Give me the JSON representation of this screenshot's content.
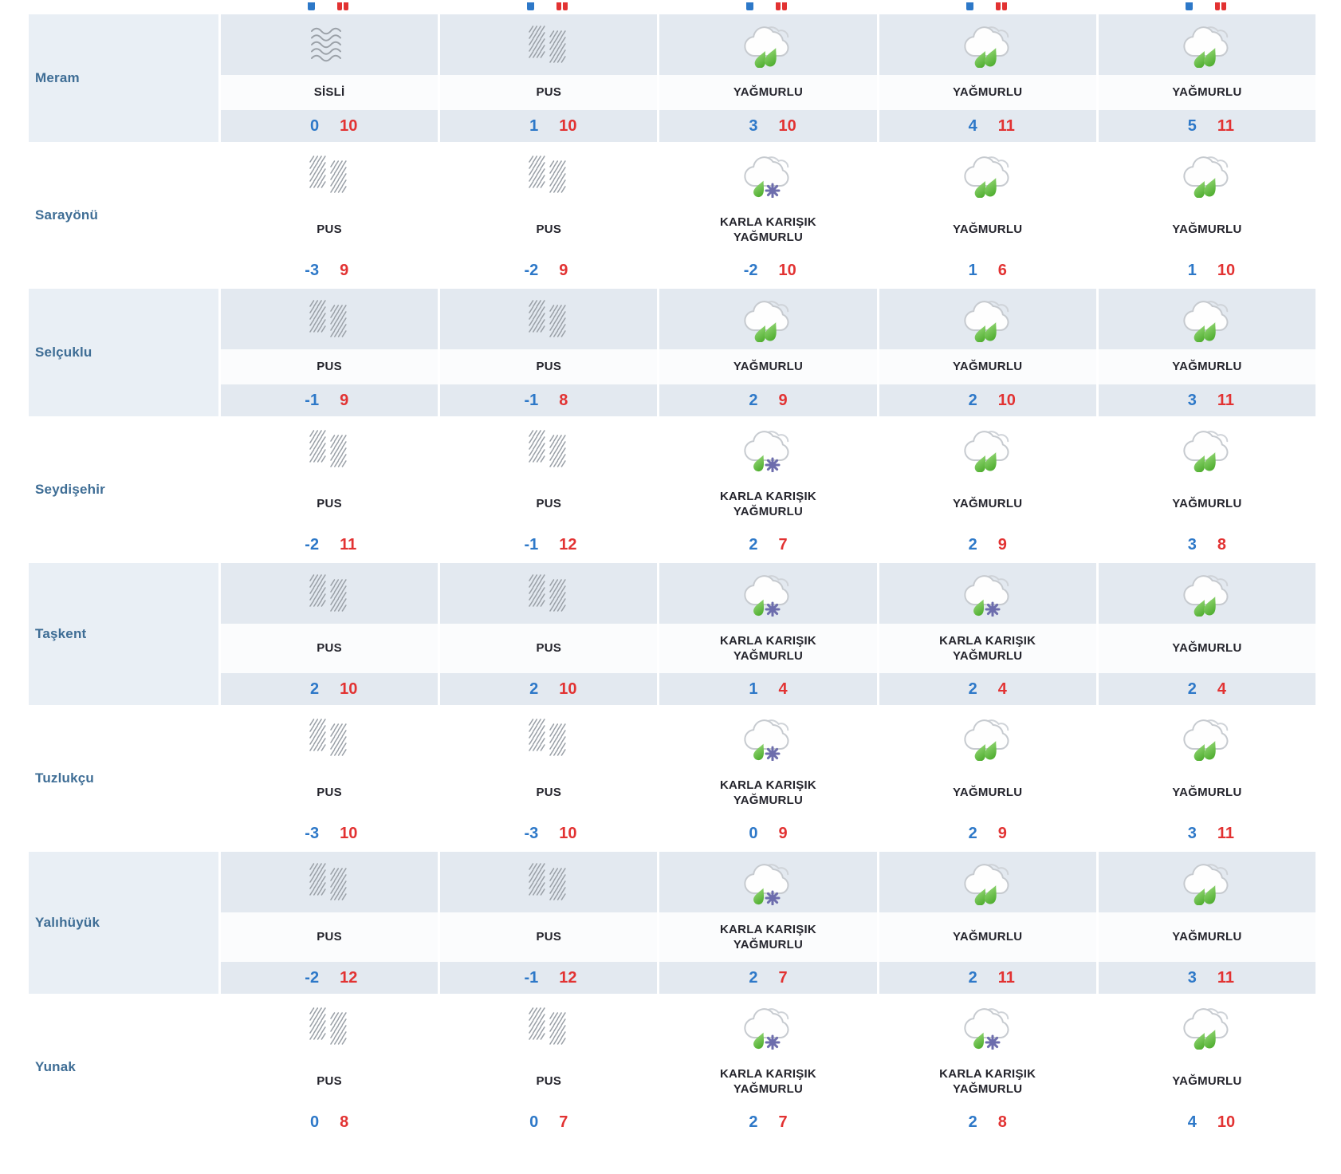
{
  "colors": {
    "min_temp_blue": "#2d78c8",
    "max_temp_red": "#e23232",
    "district_label_blue": "#3e6d95",
    "condition_text": "#25252d",
    "row_shade": "#e3e9f0",
    "label_shade": "#e9eff5",
    "rain_drop_green": "#4fb32b",
    "snowflake_purple": "#6d6dad",
    "icon_grey": "#9ba1a8"
  },
  "table": {
    "rows": [
      {
        "district": "Meram",
        "shaded": true,
        "days": [
          {
            "icon": "fog",
            "condition": "SİSLİ",
            "min": "0",
            "max": "10"
          },
          {
            "icon": "mist",
            "condition": "PUS",
            "min": "1",
            "max": "10"
          },
          {
            "icon": "rain",
            "condition": "YAĞMURLU",
            "min": "3",
            "max": "10"
          },
          {
            "icon": "rain",
            "condition": "YAĞMURLU",
            "min": "4",
            "max": "11"
          },
          {
            "icon": "rain",
            "condition": "YAĞMURLU",
            "min": "5",
            "max": "11"
          }
        ]
      },
      {
        "district": "Sarayönü",
        "shaded": false,
        "days": [
          {
            "icon": "mist",
            "condition": "PUS",
            "min": "-3",
            "max": "9"
          },
          {
            "icon": "mist",
            "condition": "PUS",
            "min": "-2",
            "max": "9"
          },
          {
            "icon": "sleet",
            "condition": "KARLA KARIŞIK YAĞMURLU",
            "min": "-2",
            "max": "10"
          },
          {
            "icon": "rain",
            "condition": "YAĞMURLU",
            "min": "1",
            "max": "6"
          },
          {
            "icon": "rain",
            "condition": "YAĞMURLU",
            "min": "1",
            "max": "10"
          }
        ]
      },
      {
        "district": "Selçuklu",
        "shaded": true,
        "days": [
          {
            "icon": "mist",
            "condition": "PUS",
            "min": "-1",
            "max": "9"
          },
          {
            "icon": "mist",
            "condition": "PUS",
            "min": "-1",
            "max": "8"
          },
          {
            "icon": "rain",
            "condition": "YAĞMURLU",
            "min": "2",
            "max": "9"
          },
          {
            "icon": "rain",
            "condition": "YAĞMURLU",
            "min": "2",
            "max": "10"
          },
          {
            "icon": "rain",
            "condition": "YAĞMURLU",
            "min": "3",
            "max": "11"
          }
        ]
      },
      {
        "district": "Seydişehir",
        "shaded": false,
        "days": [
          {
            "icon": "mist",
            "condition": "PUS",
            "min": "-2",
            "max": "11"
          },
          {
            "icon": "mist",
            "condition": "PUS",
            "min": "-1",
            "max": "12"
          },
          {
            "icon": "sleet",
            "condition": "KARLA KARIŞIK YAĞMURLU",
            "min": "2",
            "max": "7"
          },
          {
            "icon": "rain",
            "condition": "YAĞMURLU",
            "min": "2",
            "max": "9"
          },
          {
            "icon": "rain",
            "condition": "YAĞMURLU",
            "min": "3",
            "max": "8"
          }
        ]
      },
      {
        "district": "Taşkent",
        "shaded": true,
        "days": [
          {
            "icon": "mist",
            "condition": "PUS",
            "min": "2",
            "max": "10"
          },
          {
            "icon": "mist",
            "condition": "PUS",
            "min": "2",
            "max": "10"
          },
          {
            "icon": "sleet",
            "condition": "KARLA KARIŞIK YAĞMURLU",
            "min": "1",
            "max": "4"
          },
          {
            "icon": "sleet",
            "condition": "KARLA KARIŞIK YAĞMURLU",
            "min": "2",
            "max": "4"
          },
          {
            "icon": "rain",
            "condition": "YAĞMURLU",
            "min": "2",
            "max": "4"
          }
        ]
      },
      {
        "district": "Tuzlukçu",
        "shaded": false,
        "days": [
          {
            "icon": "mist",
            "condition": "PUS",
            "min": "-3",
            "max": "10"
          },
          {
            "icon": "mist",
            "condition": "PUS",
            "min": "-3",
            "max": "10"
          },
          {
            "icon": "sleet",
            "condition": "KARLA KARIŞIK YAĞMURLU",
            "min": "0",
            "max": "9"
          },
          {
            "icon": "rain",
            "condition": "YAĞMURLU",
            "min": "2",
            "max": "9"
          },
          {
            "icon": "rain",
            "condition": "YAĞMURLU",
            "min": "3",
            "max": "11"
          }
        ]
      },
      {
        "district": "Yalıhüyük",
        "shaded": true,
        "days": [
          {
            "icon": "mist",
            "condition": "PUS",
            "min": "-2",
            "max": "12"
          },
          {
            "icon": "mist",
            "condition": "PUS",
            "min": "-1",
            "max": "12"
          },
          {
            "icon": "sleet",
            "condition": "KARLA KARIŞIK YAĞMURLU",
            "min": "2",
            "max": "7"
          },
          {
            "icon": "rain",
            "condition": "YAĞMURLU",
            "min": "2",
            "max": "11"
          },
          {
            "icon": "rain",
            "condition": "YAĞMURLU",
            "min": "3",
            "max": "11"
          }
        ]
      },
      {
        "district": "Yunak",
        "shaded": false,
        "days": [
          {
            "icon": "mist",
            "condition": "PUS",
            "min": "0",
            "max": "8"
          },
          {
            "icon": "mist",
            "condition": "PUS",
            "min": "0",
            "max": "7"
          },
          {
            "icon": "sleet",
            "condition": "KARLA KARIŞIK YAĞMURLU",
            "min": "2",
            "max": "7"
          },
          {
            "icon": "sleet",
            "condition": "KARLA KARIŞIK YAĞMURLU",
            "min": "2",
            "max": "8"
          },
          {
            "icon": "rain",
            "condition": "YAĞMURLU",
            "min": "4",
            "max": "10"
          }
        ]
      }
    ]
  }
}
